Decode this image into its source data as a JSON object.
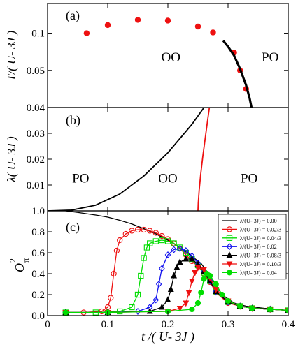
{
  "figure": {
    "shared_xlabel": "t /( U- 3J )",
    "x_ticks": [
      0,
      0.1,
      0.2,
      0.3,
      0.4
    ],
    "x_tick_labels": [
      "0",
      "0.1",
      "0.2",
      "0.3",
      "0.4"
    ]
  },
  "colors": {
    "red": "#ee1111",
    "green": "#00ee00",
    "blue": "#1111ee",
    "black": "#000000"
  },
  "chart_data": [
    {
      "type": "scatter",
      "panel_label": "(a)",
      "ylabel": "T/( U- 3J )",
      "xlim": [
        0,
        0.4
      ],
      "ylim": [
        0,
        0.14
      ],
      "y_ticks": [
        0.05,
        0.1
      ],
      "y_tick_labels": [
        "0.05",
        "0.1"
      ],
      "region_labels": [
        {
          "text": "OO",
          "x": 0.205,
          "y": 0.062
        },
        {
          "text": "PO",
          "x": 0.37,
          "y": 0.062
        }
      ],
      "series": [
        {
          "kind": "points",
          "color": "#ee1111",
          "x": [
            0.065,
            0.1,
            0.15,
            0.2,
            0.25,
            0.275,
            0.31,
            0.32,
            0.33
          ],
          "y": [
            0.1,
            0.111,
            0.118,
            0.117,
            0.109,
            0.101,
            0.074,
            0.05,
            0.025
          ]
        },
        {
          "kind": "line",
          "color": "#000000",
          "x": [
            0.292,
            0.3,
            0.31,
            0.32,
            0.33,
            0.336,
            0.339
          ],
          "y": [
            0.09,
            0.082,
            0.07,
            0.052,
            0.03,
            0.012,
            0.0
          ]
        }
      ]
    },
    {
      "type": "line",
      "panel_label": "(b)",
      "ylabel": "λ( U- 3J )",
      "xlim": [
        0,
        0.4
      ],
      "ylim": [
        0,
        0.04
      ],
      "y_ticks": [
        0,
        0.01,
        0.02,
        0.03,
        0.04
      ],
      "y_tick_labels": [
        "",
        "0.01",
        "0.02",
        "0.03",
        "0.04"
      ],
      "region_labels": [
        {
          "text": "PO",
          "x": 0.055,
          "y": 0.011
        },
        {
          "text": "OO",
          "x": 0.2,
          "y": 0.011
        },
        {
          "text": "PO",
          "x": 0.335,
          "y": 0.011
        }
      ],
      "series": [
        {
          "kind": "line",
          "color": "#000000",
          "x": [
            0.0,
            0.04,
            0.08,
            0.12,
            0.16,
            0.2,
            0.24,
            0.26
          ],
          "y": [
            0.0,
            0.0003,
            0.0022,
            0.0065,
            0.0135,
            0.0225,
            0.0335,
            0.04
          ]
        },
        {
          "kind": "line",
          "color": "#ee1111",
          "x": [
            0.25,
            0.2505,
            0.252,
            0.2545,
            0.258,
            0.262,
            0.266,
            0.269
          ],
          "y": [
            0.0,
            0.003,
            0.008,
            0.014,
            0.021,
            0.028,
            0.035,
            0.04
          ]
        }
      ]
    },
    {
      "type": "line",
      "panel_label": "(c)",
      "ylabel": "O²π",
      "ylabel_base": "O",
      "ylabel_sup": "2",
      "ylabel_sub": "π",
      "xlim": [
        0,
        0.4
      ],
      "ylim": [
        0,
        1.0
      ],
      "y_ticks": [
        0,
        0.2,
        0.4,
        0.6,
        0.8,
        1.0
      ],
      "y_tick_labels": [
        "0.0",
        "0.2",
        "0.4",
        "0.6",
        "0.8",
        "1.0"
      ],
      "legend_placement": "top-right",
      "series": [
        {
          "name": "λ/(U- 3J) = 0.00",
          "color": "#000000",
          "marker": "none",
          "x": [
            0.03,
            0.05,
            0.08,
            0.1,
            0.12,
            0.14,
            0.16,
            0.18,
            0.2,
            0.22,
            0.24,
            0.255,
            0.27,
            0.29,
            0.31,
            0.33,
            0.36,
            0.4
          ],
          "y": [
            1.0,
            0.985,
            0.96,
            0.94,
            0.91,
            0.875,
            0.83,
            0.78,
            0.72,
            0.65,
            0.565,
            0.5,
            0.38,
            0.2,
            0.12,
            0.09,
            0.07,
            0.05
          ]
        },
        {
          "name": "λ/(U- 3J) = 0.02/3",
          "color": "#ee1111",
          "marker": "circle",
          "x": [
            0.03,
            0.06,
            0.09,
            0.1,
            0.105,
            0.11,
            0.115,
            0.12,
            0.13,
            0.14,
            0.15,
            0.16,
            0.17,
            0.18,
            0.19,
            0.2,
            0.21,
            0.22,
            0.23,
            0.24,
            0.25,
            0.26,
            0.27,
            0.28,
            0.3,
            0.32,
            0.34,
            0.37,
            0.4
          ],
          "y": [
            0.03,
            0.03,
            0.04,
            0.08,
            0.17,
            0.4,
            0.62,
            0.72,
            0.78,
            0.81,
            0.82,
            0.82,
            0.81,
            0.79,
            0.76,
            0.73,
            0.69,
            0.64,
            0.58,
            0.52,
            0.47,
            0.4,
            0.32,
            0.22,
            0.12,
            0.09,
            0.07,
            0.06,
            0.05
          ]
        },
        {
          "name": "λ/(U- 3J) = 0.04/3",
          "color": "#00dd00",
          "marker": "square",
          "x": [
            0.03,
            0.08,
            0.12,
            0.14,
            0.15,
            0.155,
            0.16,
            0.165,
            0.17,
            0.18,
            0.19,
            0.2,
            0.21,
            0.22,
            0.23,
            0.24,
            0.25,
            0.26,
            0.27,
            0.28,
            0.3,
            0.32,
            0.34,
            0.37,
            0.4
          ],
          "y": [
            0.03,
            0.03,
            0.04,
            0.08,
            0.2,
            0.38,
            0.55,
            0.65,
            0.69,
            0.71,
            0.72,
            0.71,
            0.69,
            0.65,
            0.6,
            0.54,
            0.48,
            0.41,
            0.33,
            0.23,
            0.13,
            0.09,
            0.07,
            0.06,
            0.05
          ]
        },
        {
          "name": "λ/(U- 3J) = 0.02",
          "color": "#1111ee",
          "marker": "diamond",
          "x": [
            0.03,
            0.1,
            0.15,
            0.17,
            0.18,
            0.185,
            0.19,
            0.2,
            0.21,
            0.22,
            0.23,
            0.24,
            0.25,
            0.26,
            0.27,
            0.28,
            0.3,
            0.32,
            0.34,
            0.37,
            0.4
          ],
          "y": [
            0.03,
            0.03,
            0.04,
            0.08,
            0.15,
            0.3,
            0.45,
            0.58,
            0.63,
            0.64,
            0.62,
            0.57,
            0.5,
            0.42,
            0.33,
            0.23,
            0.13,
            0.09,
            0.07,
            0.06,
            0.05
          ]
        },
        {
          "name": "λ/(U- 3J) = 0.08/3",
          "color": "#000000",
          "marker": "triangle-up",
          "x": [
            0.03,
            0.1,
            0.17,
            0.19,
            0.2,
            0.205,
            0.21,
            0.215,
            0.22,
            0.23,
            0.24,
            0.25,
            0.26,
            0.27,
            0.28,
            0.3,
            0.32,
            0.34,
            0.37,
            0.4
          ],
          "y": [
            0.03,
            0.03,
            0.04,
            0.08,
            0.15,
            0.25,
            0.38,
            0.46,
            0.51,
            0.54,
            0.54,
            0.49,
            0.42,
            0.33,
            0.23,
            0.13,
            0.09,
            0.07,
            0.06,
            0.05
          ]
        },
        {
          "name": "λ/(U- 3J) = 0.10/3",
          "color": "#ee1111",
          "marker": "triangle-down",
          "x": [
            0.03,
            0.1,
            0.2,
            0.22,
            0.23,
            0.235,
            0.24,
            0.245,
            0.25,
            0.26,
            0.27,
            0.28,
            0.3,
            0.32,
            0.34,
            0.37,
            0.4
          ],
          "y": [
            0.03,
            0.03,
            0.04,
            0.07,
            0.12,
            0.22,
            0.33,
            0.41,
            0.46,
            0.44,
            0.36,
            0.25,
            0.14,
            0.09,
            0.07,
            0.06,
            0.05
          ]
        },
        {
          "name": "λ/(U- 3J) = 0.04",
          "color": "#00dd00",
          "marker": "circle-filled",
          "x": [
            0.03,
            0.1,
            0.2,
            0.24,
            0.25,
            0.255,
            0.26,
            0.265,
            0.27,
            0.28,
            0.29,
            0.3,
            0.32,
            0.34,
            0.37,
            0.4
          ],
          "y": [
            0.03,
            0.03,
            0.04,
            0.06,
            0.12,
            0.22,
            0.35,
            0.4,
            0.38,
            0.3,
            0.2,
            0.14,
            0.09,
            0.07,
            0.06,
            0.05
          ]
        }
      ]
    }
  ]
}
